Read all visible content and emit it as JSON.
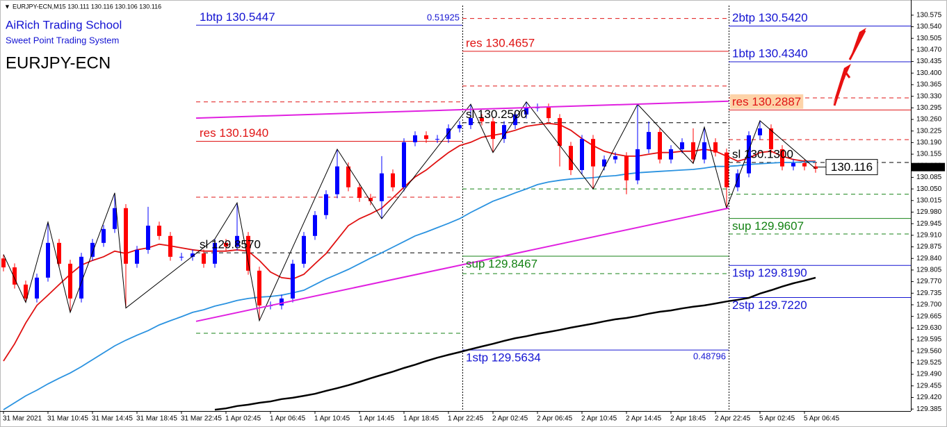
{
  "header": {
    "info": "EURJPY-ECN,M15 130.111 130.116 130.106 130.116",
    "school": "AiRich Trading School",
    "system": "Sweet Point Trading System",
    "symbol": "EURJPY-ECN"
  },
  "chart_data": {
    "type": "candlestick",
    "categories": [
      "31 Mar 2021",
      null,
      null,
      null,
      "31 Mar 10:45",
      null,
      null,
      null,
      "31 Mar 14:45",
      null,
      null,
      null,
      "31 Mar 18:45",
      null,
      null,
      null,
      "31 Mar 22:45",
      null,
      null,
      null,
      "1 Apr 02:45",
      null,
      null,
      null,
      "1 Apr 06:45",
      null,
      null,
      null,
      "1 Apr 10:45",
      null,
      null,
      null,
      "1 Apr 14:45",
      null,
      null,
      null,
      "1 Apr 18:45",
      null,
      null,
      null,
      "1 Apr 22:45",
      null,
      null,
      null,
      "2 Apr 02:45",
      null,
      null,
      null,
      "2 Apr 06:45",
      null,
      null,
      null,
      "2 Apr 10:45",
      null,
      null,
      null,
      "2 Apr 14:45",
      null,
      null,
      null,
      "2 Apr 18:45",
      null,
      null,
      null,
      "2 Apr 22:45",
      null,
      null,
      null,
      "5 Apr 02:45",
      null,
      null,
      null,
      "5 Apr 06:45",
      null
    ],
    "open": [
      129.84,
      129.813,
      129.761,
      129.719,
      129.782,
      129.887,
      129.824,
      129.719,
      129.845,
      129.887,
      129.929,
      129.992,
      129.824,
      129.866,
      129.939,
      129.908,
      129.845,
      129.845,
      129.855,
      129.824,
      129.887,
      129.876,
      129.908,
      129.803,
      129.698,
      129.698,
      129.719,
      129.824,
      129.908,
      129.971,
      130.034,
      130.118,
      130.055,
      130.023,
      130.013,
      130.097,
      130.055,
      130.191,
      130.212,
      130.201,
      130.201,
      130.233,
      130.243,
      130.264,
      130.254,
      130.201,
      130.243,
      130.275,
      130.296,
      130.296,
      130.264,
      130.18,
      130.107,
      130.201,
      130.118,
      130.139,
      130.149,
      130.076,
      130.17,
      130.222,
      130.139,
      130.17,
      130.191,
      130.139,
      130.191,
      130.16,
      130.055,
      130.097,
      130.212,
      130.233,
      130.17,
      130.118,
      130.128,
      130.118
    ],
    "high": [
      129.852,
      129.825,
      129.773,
      129.794,
      129.95,
      129.899,
      129.836,
      129.857,
      129.899,
      129.941,
      130.038,
      130.004,
      129.878,
      129.996,
      129.951,
      129.92,
      129.857,
      129.867,
      129.867,
      129.899,
      129.899,
      130.008,
      129.92,
      129.815,
      129.71,
      129.731,
      129.836,
      129.92,
      129.983,
      130.046,
      130.17,
      130.13,
      130.067,
      130.035,
      130.149,
      130.109,
      130.203,
      130.224,
      130.224,
      130.213,
      130.245,
      130.255,
      130.306,
      130.276,
      130.266,
      130.255,
      130.287,
      130.313,
      130.308,
      130.308,
      130.276,
      130.192,
      130.213,
      130.213,
      130.151,
      130.161,
      130.161,
      130.306,
      130.254,
      130.234,
      130.182,
      130.203,
      130.233,
      130.237,
      130.203,
      130.172,
      130.109,
      130.224,
      130.256,
      130.245,
      130.182,
      130.14,
      130.14,
      130.13
    ],
    "low": [
      129.801,
      129.749,
      129.707,
      129.707,
      129.77,
      129.812,
      129.677,
      129.707,
      129.833,
      129.875,
      129.917,
      129.69,
      129.812,
      129.854,
      129.896,
      129.833,
      129.833,
      129.833,
      129.812,
      129.812,
      129.864,
      129.864,
      129.791,
      129.652,
      129.686,
      129.686,
      129.707,
      129.812,
      129.896,
      129.959,
      130.022,
      130.043,
      130.011,
      130.001,
      129.96,
      130.043,
      130.043,
      130.179,
      130.189,
      130.189,
      130.189,
      130.221,
      130.231,
      130.242,
      130.16,
      130.189,
      130.231,
      130.263,
      130.284,
      130.252,
      130.118,
      130.092,
      130.095,
      130.05,
      130.106,
      130.127,
      130.034,
      130.064,
      130.158,
      130.127,
      130.127,
      130.158,
      130.127,
      130.127,
      130.148,
      129.992,
      130.043,
      130.085,
      130.2,
      130.158,
      130.106,
      130.106,
      130.106,
      130.099
    ],
    "close": [
      129.813,
      129.761,
      129.719,
      129.782,
      129.887,
      129.824,
      129.719,
      129.845,
      129.887,
      129.929,
      129.992,
      129.824,
      129.866,
      129.939,
      129.908,
      129.845,
      129.845,
      129.855,
      129.824,
      129.887,
      129.876,
      129.908,
      129.803,
      129.698,
      129.698,
      129.719,
      129.824,
      129.908,
      129.971,
      130.034,
      130.118,
      130.055,
      130.023,
      130.013,
      130.097,
      130.055,
      130.191,
      130.212,
      130.201,
      130.201,
      130.233,
      130.243,
      130.264,
      130.254,
      130.201,
      130.243,
      130.275,
      130.296,
      130.296,
      130.264,
      130.18,
      130.107,
      130.201,
      130.118,
      130.139,
      130.149,
      130.076,
      130.17,
      130.222,
      130.139,
      130.17,
      130.191,
      130.139,
      130.191,
      130.16,
      130.055,
      130.097,
      130.212,
      130.233,
      130.17,
      130.118,
      130.128,
      130.118,
      130.111
    ],
    "up_color": "#0000ff",
    "down_color": "#ff0000",
    "series": [
      {
        "color": "#e01010",
        "values": [
          129.53,
          129.582,
          129.645,
          129.698,
          129.729,
          129.761,
          129.792,
          129.82,
          129.834,
          129.845,
          129.862,
          129.855,
          129.866,
          129.872,
          129.883,
          129.878,
          129.872,
          129.866,
          129.862,
          129.862,
          129.862,
          129.866,
          129.862,
          129.834,
          129.799,
          129.782,
          129.778,
          129.792,
          129.824,
          129.855,
          129.897,
          129.939,
          129.96,
          129.975,
          129.992,
          130.023,
          130.055,
          130.086,
          130.107,
          130.134,
          130.16,
          130.181,
          130.191,
          130.206,
          130.212,
          130.218,
          130.227,
          130.239,
          130.244,
          130.248,
          130.244,
          130.227,
          130.202,
          130.181,
          130.164,
          130.155,
          130.149,
          130.149,
          130.155,
          130.16,
          130.16,
          130.164,
          130.164,
          130.17,
          130.164,
          130.149,
          130.134,
          130.143,
          130.16,
          130.164,
          130.149,
          130.139,
          130.134,
          130.134
        ]
      },
      {
        "color": "#2a92e0",
        "values": [
          129.383,
          129.404,
          129.425,
          129.442,
          129.461,
          129.478,
          129.494,
          129.513,
          129.534,
          129.555,
          129.576,
          129.593,
          129.608,
          129.622,
          129.639,
          129.652,
          129.664,
          129.677,
          129.685,
          129.696,
          129.704,
          129.713,
          129.719,
          129.723,
          129.725,
          129.729,
          129.736,
          129.744,
          129.761,
          129.778,
          129.792,
          129.807,
          129.824,
          129.841,
          129.857,
          129.874,
          129.891,
          129.908,
          129.92,
          129.933,
          129.946,
          129.96,
          129.979,
          129.996,
          130.013,
          130.025,
          130.038,
          130.05,
          130.063,
          130.071,
          130.076,
          130.08,
          130.082,
          130.084,
          130.088,
          130.09,
          130.095,
          130.099,
          130.101,
          130.103,
          130.105,
          130.107,
          130.109,
          130.113,
          130.118,
          130.118,
          130.12,
          130.124,
          130.126,
          130.128,
          130.13,
          130.13,
          130.132,
          130.132
        ]
      },
      {
        "color": "#000000",
        "values": [
          null,
          null,
          null,
          null,
          null,
          null,
          null,
          null,
          null,
          null,
          null,
          null,
          null,
          null,
          null,
          null,
          null,
          null,
          null,
          129.383,
          129.387,
          129.394,
          129.398,
          129.404,
          129.408,
          129.415,
          129.419,
          129.425,
          129.431,
          129.44,
          129.448,
          129.457,
          129.467,
          129.478,
          129.488,
          129.498,
          129.509,
          129.519,
          129.53,
          129.54,
          129.549,
          129.557,
          129.566,
          129.574,
          129.582,
          129.591,
          129.599,
          129.605,
          129.612,
          129.618,
          129.624,
          129.631,
          129.637,
          129.643,
          129.65,
          129.656,
          129.66,
          129.666,
          129.673,
          129.679,
          129.683,
          129.689,
          129.694,
          129.698,
          129.704,
          129.71,
          129.715,
          129.721,
          129.734,
          129.744,
          129.755,
          129.765,
          129.773,
          129.782
        ]
      }
    ],
    "zigzag": {
      "color": "#000000",
      "x": [
        0,
        2,
        4,
        6,
        10,
        11,
        19,
        21,
        23,
        30,
        34,
        42,
        44,
        47,
        53,
        57,
        62,
        63,
        65,
        68,
        73
      ],
      "values": [
        129.852,
        129.707,
        129.95,
        129.677,
        130.038,
        129.69,
        129.899,
        130.008,
        129.652,
        130.17,
        129.96,
        130.306,
        130.16,
        130.313,
        130.05,
        130.306,
        130.127,
        130.237,
        129.992,
        130.256,
        130.111
      ]
    },
    "trendlines": [
      {
        "color": "#e020e0",
        "values": [
          130.264,
          130.315
        ]
      },
      {
        "color": "#e020e0",
        "values": [
          129.65,
          129.992
        ]
      }
    ],
    "zones": [
      {
        "ratio": 0.51925,
        "levels": [
          {
            "value": 130.5447,
            "label": "1btp 130.5447",
            "color": "#1414d2",
            "label_pos": "above"
          },
          {
            "value": 130.313,
            "color": "#e01414",
            "dashed": true
          },
          {
            "value": 130.194,
            "label": "res 130.1940",
            "color": "#e01414",
            "label_pos": "above"
          },
          {
            "value": 130.025,
            "color": "#e01414",
            "dashed": true
          },
          {
            "value": 129.857,
            "label": "sl 129.8570",
            "color": "#000000",
            "dashed": true,
            "label_pos": "above"
          },
          {
            "value": 129.614,
            "color": "#148214",
            "dashed": true
          }
        ]
      },
      {
        "ratio": 0.48796,
        "levels": [
          {
            "value": 130.565,
            "color": "#e01414",
            "dashed": true
          },
          {
            "value": 130.4657,
            "label": "res 130.4657",
            "color": "#e01414",
            "label_pos": "above"
          },
          {
            "value": 130.361,
            "color": "#e01414",
            "dashed": true
          },
          {
            "value": 130.25,
            "label": "sl 130.2500",
            "color": "#000000",
            "dashed": true,
            "label_pos": "above"
          },
          {
            "value": 130.05,
            "color": "#148214",
            "dashed": true
          },
          {
            "value": 129.8467,
            "label": "sup 129.8467",
            "color": "#148214",
            "label_pos": "below"
          },
          {
            "value": 129.794,
            "color": "#148214",
            "dashed": true
          },
          {
            "value": 129.5634,
            "label": "1stp 129.5634",
            "color": "#1414d2",
            "label_pos": "below"
          }
        ]
      },
      {
        "levels": [
          {
            "value": 130.542,
            "label": "2btp 130.5420",
            "color": "#1414d2",
            "label_pos": "above"
          },
          {
            "value": 130.434,
            "label": "1btp 130.4340",
            "color": "#1414d2",
            "label_pos": "above"
          },
          {
            "value": 130.325,
            "color": "#e01414",
            "dashed": true
          },
          {
            "value": 130.2887,
            "label": "res 130.2887",
            "color": "#e01414",
            "label_pos": "above",
            "highlight": "#fdd3a8"
          },
          {
            "value": 130.199,
            "color": "#e01414",
            "dashed": true
          },
          {
            "value": 130.13,
            "label": "sl 130.1300",
            "color": "#000000",
            "dashed": true,
            "label_pos": "above"
          },
          {
            "value": 130.034,
            "color": "#148214",
            "dashed": true
          },
          {
            "value": 129.9607,
            "label": "sup 129.9607",
            "color": "#148214",
            "label_pos": "below"
          },
          {
            "value": 129.914,
            "color": "#148214",
            "dashed": true
          },
          {
            "value": 129.819,
            "label": "1stp 129.8190",
            "color": "#1414d2",
            "label_pos": "below"
          },
          {
            "value": 129.722,
            "label": "2stp 129.7220",
            "color": "#1414d2",
            "label_pos": "below"
          }
        ]
      }
    ],
    "last_price": 130.116,
    "ylim": [
      129.379,
      130.604
    ],
    "yticks": [
      130.575,
      {
        "value": 130.54,
        "label": "130.540"
      },
      130.505,
      {
        "value": 130.47,
        "label": "130.470"
      },
      130.435,
      {
        "value": 130.4,
        "label": "130.400"
      },
      130.365,
      {
        "value": 130.33,
        "label": "130.330"
      },
      130.295,
      {
        "value": 130.26,
        "label": "130.260"
      },
      130.225,
      {
        "value": 130.19,
        "label": "130.190"
      },
      130.155,
      {
        "value": 130.12,
        "label": "130.120"
      },
      130.085,
      {
        "value": 130.05,
        "label": "130.050"
      },
      130.015,
      {
        "value": 129.98,
        "label": "129.980"
      },
      129.945,
      {
        "value": 129.91,
        "label": "129.910"
      },
      129.875,
      {
        "value": 129.84,
        "label": "129.840"
      },
      129.805,
      {
        "value": 129.77,
        "label": "129.770"
      },
      129.735,
      {
        "value": 129.7,
        "label": "129.700"
      },
      129.665,
      {
        "value": 129.63,
        "label": "129.630"
      },
      129.595,
      {
        "value": 129.56,
        "label": "129.560"
      },
      129.525,
      {
        "value": 129.49,
        "label": "129.490"
      },
      129.455,
      {
        "value": 129.42,
        "label": "129.420"
      },
      129.385
    ]
  }
}
